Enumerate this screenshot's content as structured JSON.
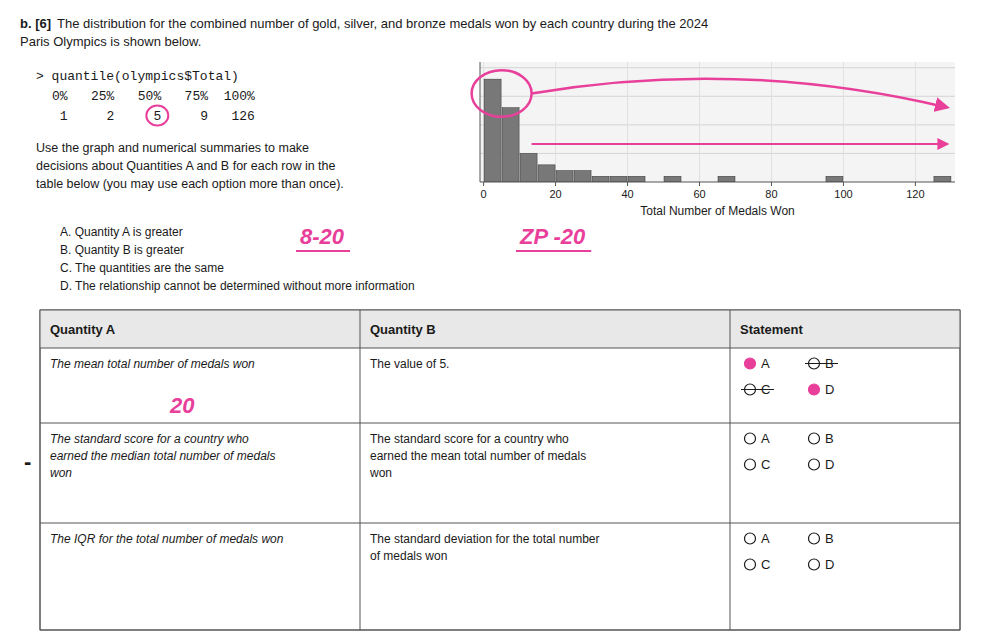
{
  "chart_data": {
    "type": "histogram",
    "title": "b. [6]",
    "subtitle": "The distribution for the combined number of gold, silver, and bronze medals won by each country during the 2024\nParis Olympics is shown below.",
    "x_label": "Total Number of Medals Won",
    "bins": [
      0,
      5,
      10,
      15,
      20,
      25,
      30,
      35,
      40,
      45,
      50,
      55,
      60,
      65,
      70,
      75,
      80,
      85,
      90,
      95,
      100,
      105,
      110,
      115,
      120,
      125,
      130
    ],
    "values": [
      18,
      13,
      5,
      3,
      2,
      2,
      1,
      1,
      1,
      0,
      1,
      0,
      0,
      1,
      0,
      0,
      0,
      0,
      0,
      1,
      0,
      0,
      0,
      0,
      0,
      1
    ],
    "color": "#787878",
    "xlim": [
      -1,
      131
    ],
    "ylim": [
      0,
      21
    ],
    "xticks": [
      0,
      20,
      40,
      60,
      80,
      100,
      120
    ],
    "yticks": [
      5,
      10,
      15,
      20
    ],
    "grid": true,
    "tick_labels": "x",
    "annotations": [
      "> quantile(olympics$Total)",
      "0%   25%   50%   75%  100%",
      " 1     2     5     9   126",
      "Use the graph and numerical summaries to make\ndecisions about Quantities A and B for each row in the\ntable below (you may use each option more than once).",
      "A.  Quantity A is greater",
      "B.  Quantity B is greater",
      "C.  The quantities are the same",
      "D.  The relationship cannot be determined without more information",
      "8-20",
      "ZP -20",
      "Quantity A",
      "Quantity B",
      "Statement",
      "The mean total number of medals won",
      "The value of 5.",
      "The standard score for a country who\nearned the median total number of medals\nwon",
      "The standard score for a country who\nearned the mean total number of medals\nwon",
      "The IQR for the total number of medals won",
      "The standard deviation for the total number\nof medals won",
      "A",
      "B",
      "C",
      "D",
      "20",
      "-"
    ]
  }
}
